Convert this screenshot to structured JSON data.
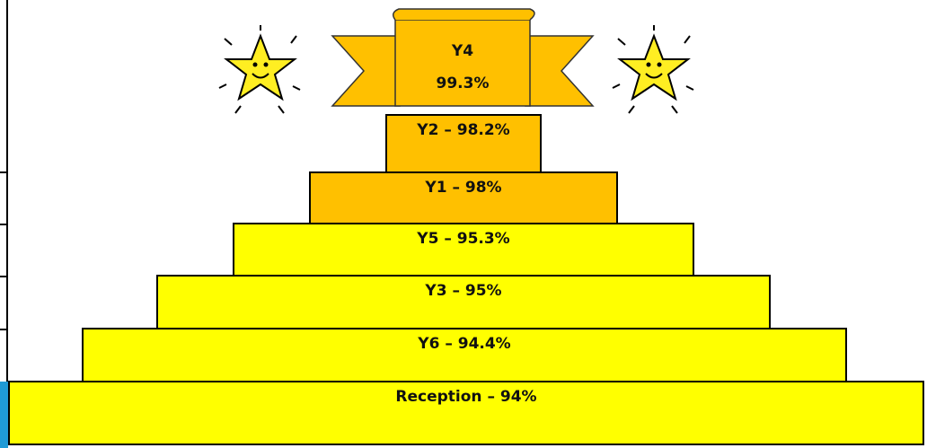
{
  "banner": {
    "line1": "Y4",
    "line2": "99.3%"
  },
  "tiers": [
    {
      "label": "Y2 – 98.2%"
    },
    {
      "label": "Y1 – 98%"
    },
    {
      "label": "Y5 – 95.3%"
    },
    {
      "label": "Y3 – 95%"
    },
    {
      "label": "Y6 – 94.4%"
    },
    {
      "label": "Reception – 94%"
    }
  ]
}
